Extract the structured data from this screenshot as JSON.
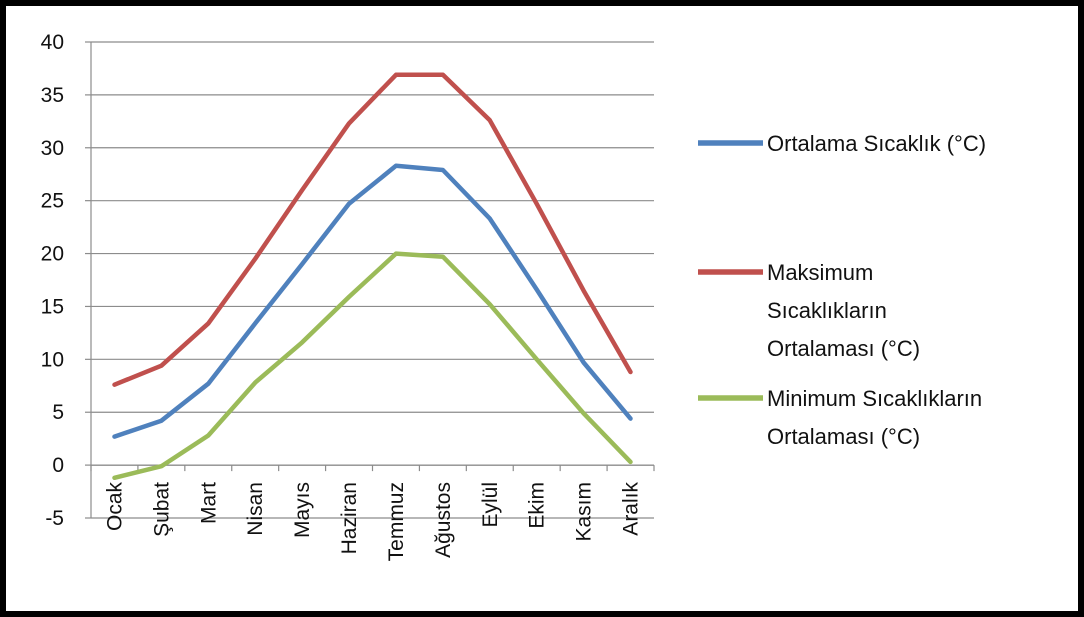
{
  "chart_data": {
    "type": "line",
    "title": "",
    "xlabel": "",
    "ylabel": "",
    "categories": [
      "Ocak",
      "Şubat",
      "Mart",
      "Nisan",
      "Mayıs",
      "Haziran",
      "Temmuz",
      "Ağustos",
      "Eylül",
      "Ekim",
      "Kasım",
      "Aralık"
    ],
    "ylim": [
      -5,
      40
    ],
    "yticks": [
      -5,
      0,
      5,
      10,
      15,
      20,
      25,
      30,
      35,
      40
    ],
    "grid": true,
    "legend_position": "right",
    "series": [
      {
        "name": "Ortalama Sıcaklık (°C)",
        "legend_lines": [
          "Ortalama Sıcaklık (°C)"
        ],
        "color": "#4f81bd",
        "values": [
          2.7,
          4.2,
          7.7,
          13.4,
          19.0,
          24.7,
          28.3,
          27.9,
          23.3,
          16.6,
          9.7,
          4.4
        ]
      },
      {
        "name": "Maksimum Sıcaklıkların Ortalaması (°C)",
        "legend_lines": [
          "Maksimum",
          "Sıcaklıkların",
          "Ortalaması (°C)"
        ],
        "color": "#c0504d",
        "values": [
          7.6,
          9.4,
          13.4,
          19.5,
          26.0,
          32.3,
          36.9,
          36.9,
          32.6,
          24.7,
          16.5,
          8.8
        ]
      },
      {
        "name": "Minimum Sıcaklıkların Ortalaması (°C)",
        "legend_lines": [
          "Minimum Sıcaklıkların",
          "Ortalaması (°C)"
        ],
        "color": "#9bbb59",
        "values": [
          -1.2,
          -0.1,
          2.8,
          7.8,
          11.6,
          15.9,
          20.0,
          19.7,
          15.2,
          10.0,
          4.9,
          0.3
        ]
      }
    ]
  }
}
